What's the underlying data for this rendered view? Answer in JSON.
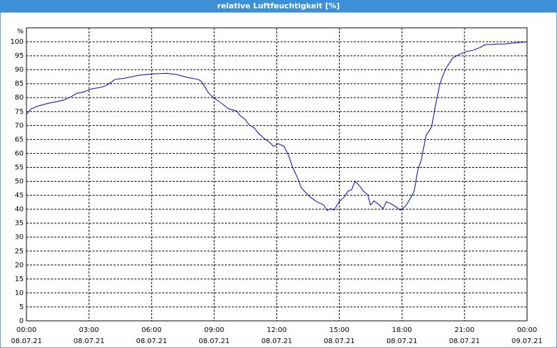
{
  "chart_data": {
    "type": "line",
    "title": "relative Luftfeuchtigkeit [%]",
    "y_unit": "%",
    "color": "#0000c0",
    "grid": true,
    "xlim": [
      0,
      24
    ],
    "ylim": [
      0,
      105
    ],
    "xticks": [
      {
        "value": 0,
        "label": "00:00"
      },
      {
        "value": 3,
        "label": "03:00"
      },
      {
        "value": 6,
        "label": "06:00"
      },
      {
        "value": 9,
        "label": "09:00"
      },
      {
        "value": 12,
        "label": "12:00"
      },
      {
        "value": 15,
        "label": "15:00"
      },
      {
        "value": 18,
        "label": "18:00"
      },
      {
        "value": 21,
        "label": "21:00"
      },
      {
        "value": 24,
        "label": "00:00"
      }
    ],
    "xtick_dates": [
      "08.07.21",
      "08.07.21",
      "08.07.21",
      "08.07.21",
      "08.07.21",
      "08.07.21",
      "08.07.21",
      "08.07.21",
      "09.07.21"
    ],
    "yticks": [
      0,
      5,
      10,
      15,
      20,
      25,
      30,
      35,
      40,
      45,
      50,
      55,
      60,
      65,
      70,
      75,
      80,
      85,
      90,
      95,
      100
    ],
    "x": [
      0,
      0.23,
      0.57,
      1.07,
      1.74,
      2.07,
      2.4,
      2.74,
      3.07,
      3.74,
      4.07,
      4.24,
      4.74,
      5.4,
      6.07,
      6.74,
      7.24,
      7.74,
      8.24,
      8.4,
      8.74,
      9.07,
      9.4,
      9.68,
      10.08,
      10.25,
      10.48,
      10.68,
      10.91,
      11.15,
      11.42,
      11.65,
      11.85,
      12.08,
      12.35,
      12.58,
      12.75,
      12.98,
      13.18,
      13.42,
      13.58,
      13.92,
      14.25,
      14.42,
      14.58,
      14.75,
      14.99,
      15.25,
      15.42,
      15.59,
      15.75,
      15.99,
      16.15,
      16.36,
      16.49,
      16.66,
      16.92,
      17.09,
      17.26,
      17.59,
      17.92,
      18.16,
      18.42,
      18.59,
      18.76,
      18.93,
      19.16,
      19.43,
      19.59,
      19.83,
      20.09,
      20.43,
      20.76,
      21.09,
      21.43,
      21.76,
      22.0,
      22.26,
      22.6,
      22.93,
      23.26,
      23.6,
      24
    ],
    "values": [
      74,
      76,
      77,
      78,
      79,
      80,
      81.5,
      82,
      83,
      84,
      85.5,
      86.5,
      87,
      88,
      88.5,
      88.7,
      88.2,
      87.2,
      86.5,
      85.7,
      81.5,
      79.5,
      77.7,
      76,
      75.2,
      73.5,
      72.2,
      70.2,
      69.2,
      67,
      65.2,
      64,
      62.5,
      63.5,
      62.5,
      59,
      55.2,
      51.5,
      47.7,
      45.7,
      44.5,
      42.7,
      41.5,
      39.5,
      40.2,
      39.7,
      42.7,
      44.5,
      46.5,
      47,
      50,
      48.2,
      46.5,
      45.2,
      41.5,
      43,
      41.5,
      40.2,
      42.7,
      41.5,
      39.7,
      41,
      44,
      46.5,
      54,
      57.7,
      66.5,
      69.5,
      76.5,
      85.2,
      90.2,
      94.2,
      95.5,
      96.5,
      97,
      98,
      99,
      99,
      99.2,
      99.2,
      99.5,
      99.7,
      100
    ]
  }
}
